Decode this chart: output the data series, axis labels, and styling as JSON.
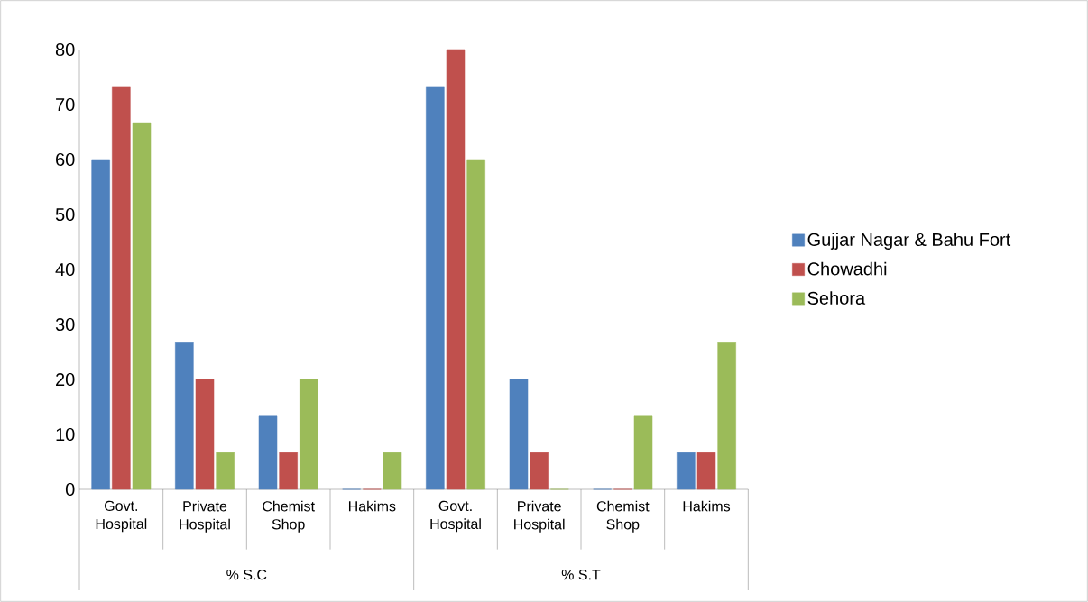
{
  "chart_data": {
    "type": "bar",
    "categories": [
      "Govt. Hospital",
      "Private Hospital",
      "Chemist Shop",
      "Hakims",
      "Govt. Hospital",
      "Private Hospital",
      "Chemist Shop",
      "Hakims"
    ],
    "annotations": [
      "% S.C",
      "% S.T"
    ],
    "series": [
      {
        "name": "Gujjar Nagar & Bahu Fort",
        "color": "#4f81bd",
        "values": [
          60,
          26.7,
          13.3,
          0,
          73.3,
          20,
          0,
          6.7
        ]
      },
      {
        "name": "Chowadhi",
        "color": "#c0504d",
        "values": [
          73.3,
          20,
          6.7,
          0,
          80,
          6.7,
          0,
          6.7
        ]
      },
      {
        "name": "Sehora",
        "color": "#9bbb59",
        "values": [
          66.7,
          6.7,
          20,
          6.7,
          60,
          0,
          13.3,
          26.7
        ]
      }
    ],
    "ylim": [
      0,
      80
    ],
    "yticks": [
      0,
      10,
      20,
      30,
      40,
      50,
      60,
      70,
      80
    ],
    "grid": false,
    "legend": "right"
  }
}
